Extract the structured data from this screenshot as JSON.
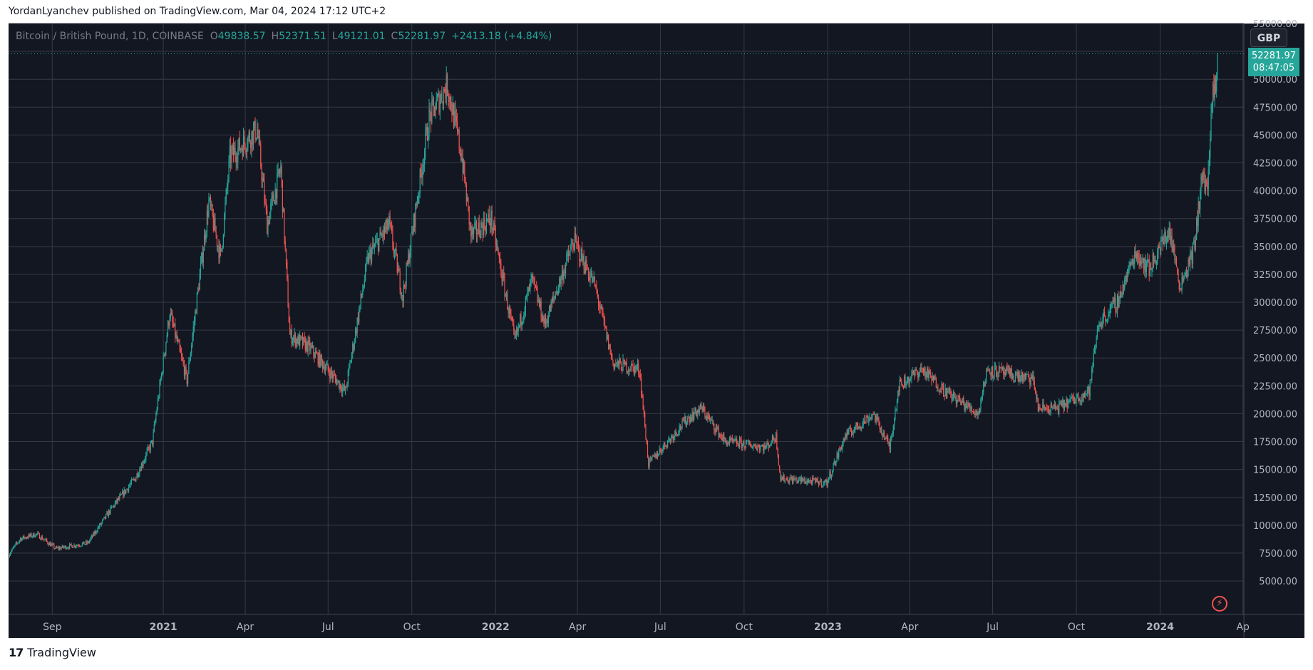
{
  "published_line": "YordanLyanchev published on TradingView.com, Mar 04, 2024 17:12 UTC+2",
  "legend": {
    "symbol": "Bitcoin / British Pound, 1D, COINBASE",
    "o_label": "O",
    "o_value": "49838.57",
    "h_label": "H",
    "h_value": "52371.51",
    "l_label": "L",
    "l_value": "49121.01",
    "c_label": "C",
    "c_value": "52281.97",
    "change": "+2413.18 (+4.84%)"
  },
  "currency_button": "GBP",
  "last_price": {
    "price": "52281.97",
    "countdown": "08:47:05"
  },
  "footer": {
    "brand": "TradingView",
    "logo_icon": "tradingview-logo-icon"
  },
  "colors": {
    "up": "#26a69a",
    "down": "#ef5350",
    "background": "#131722",
    "grid": "#363a45",
    "axis_text": "#b2b5be"
  },
  "chart_data": {
    "type": "candlestick",
    "interval": "1D",
    "y_ticks": [
      5000,
      7500,
      10000,
      12500,
      15000,
      17500,
      20000,
      22500,
      25000,
      27500,
      30000,
      32500,
      35000,
      37500,
      40000,
      42500,
      45000,
      47500,
      50000,
      52500,
      55000
    ],
    "y_tick_labels": [
      "5000.00",
      "7500.00",
      "10000.00",
      "12500.00",
      "15000.00",
      "17500.00",
      "20000.00",
      "22500.00",
      "25000.00",
      "27500.00",
      "30000.00",
      "32500.00",
      "35000.00",
      "37500.00",
      "40000.00",
      "42500.00",
      "45000.00",
      "47500.00",
      "50000.00",
      "52500.00",
      "55000.00"
    ],
    "ylim": [
      2000,
      55000
    ],
    "x_range": [
      "2020-07-15",
      "2024-04-02"
    ],
    "x_ticks": [
      {
        "date": "2020-09-01",
        "label": "Sep",
        "bold": false
      },
      {
        "date": "2021-01-01",
        "label": "2021",
        "bold": true
      },
      {
        "date": "2021-04-01",
        "label": "Apr",
        "bold": false
      },
      {
        "date": "2021-07-01",
        "label": "Jul",
        "bold": false
      },
      {
        "date": "2021-10-01",
        "label": "Oct",
        "bold": false
      },
      {
        "date": "2022-01-01",
        "label": "2022",
        "bold": true
      },
      {
        "date": "2022-04-01",
        "label": "Apr",
        "bold": false
      },
      {
        "date": "2022-07-01",
        "label": "Jul",
        "bold": false
      },
      {
        "date": "2022-10-01",
        "label": "Oct",
        "bold": false
      },
      {
        "date": "2023-01-01",
        "label": "2023",
        "bold": true
      },
      {
        "date": "2023-04-01",
        "label": "Apr",
        "bold": false
      },
      {
        "date": "2023-07-01",
        "label": "Jul",
        "bold": false
      },
      {
        "date": "2023-10-01",
        "label": "Oct",
        "bold": false
      },
      {
        "date": "2024-01-01",
        "label": "2024",
        "bold": true
      },
      {
        "date": "2024-04-01",
        "label": "Ap",
        "bold": false
      }
    ],
    "last_close": 52281.97,
    "price_path": [
      {
        "date": "2020-07-15",
        "close": 7350
      },
      {
        "date": "2020-07-28",
        "close": 8800
      },
      {
        "date": "2020-08-15",
        "close": 9200
      },
      {
        "date": "2020-09-05",
        "close": 7900
      },
      {
        "date": "2020-10-10",
        "close": 8400
      },
      {
        "date": "2020-11-05",
        "close": 11500
      },
      {
        "date": "2020-12-01",
        "close": 14200
      },
      {
        "date": "2020-12-20",
        "close": 17500
      },
      {
        "date": "2021-01-08",
        "close": 29000
      },
      {
        "date": "2021-01-27",
        "close": 23000
      },
      {
        "date": "2021-02-20",
        "close": 39000
      },
      {
        "date": "2021-03-05",
        "close": 34000
      },
      {
        "date": "2021-03-15",
        "close": 43000
      },
      {
        "date": "2021-04-14",
        "close": 45500
      },
      {
        "date": "2021-04-25",
        "close": 37000
      },
      {
        "date": "2021-05-10",
        "close": 42000
      },
      {
        "date": "2021-05-20",
        "close": 27000
      },
      {
        "date": "2021-06-10",
        "close": 26000
      },
      {
        "date": "2021-07-20",
        "close": 22000
      },
      {
        "date": "2021-08-14",
        "close": 34000
      },
      {
        "date": "2021-09-06",
        "close": 37000
      },
      {
        "date": "2021-09-21",
        "close": 30500
      },
      {
        "date": "2021-10-20",
        "close": 46500
      },
      {
        "date": "2021-11-09",
        "close": 49500
      },
      {
        "date": "2021-11-25",
        "close": 43000
      },
      {
        "date": "2021-12-05",
        "close": 36000
      },
      {
        "date": "2021-12-27",
        "close": 37500
      },
      {
        "date": "2022-01-22",
        "close": 26500
      },
      {
        "date": "2022-02-10",
        "close": 32000
      },
      {
        "date": "2022-02-24",
        "close": 28000
      },
      {
        "date": "2022-03-28",
        "close": 35500
      },
      {
        "date": "2022-04-20",
        "close": 31500
      },
      {
        "date": "2022-05-10",
        "close": 24500
      },
      {
        "date": "2022-06-08",
        "close": 24000
      },
      {
        "date": "2022-06-18",
        "close": 15500
      },
      {
        "date": "2022-07-30",
        "close": 19500
      },
      {
        "date": "2022-08-15",
        "close": 20500
      },
      {
        "date": "2022-09-10",
        "close": 17500
      },
      {
        "date": "2022-10-25",
        "close": 17000
      },
      {
        "date": "2022-11-05",
        "close": 18000
      },
      {
        "date": "2022-11-10",
        "close": 14200
      },
      {
        "date": "2022-12-31",
        "close": 13800
      },
      {
        "date": "2023-01-20",
        "close": 18000
      },
      {
        "date": "2023-02-20",
        "close": 20000
      },
      {
        "date": "2023-03-10",
        "close": 17000
      },
      {
        "date": "2023-03-20",
        "close": 22500
      },
      {
        "date": "2023-04-14",
        "close": 24000
      },
      {
        "date": "2023-05-10",
        "close": 22000
      },
      {
        "date": "2023-06-15",
        "close": 20000
      },
      {
        "date": "2023-06-25",
        "close": 24000
      },
      {
        "date": "2023-08-15",
        "close": 23000
      },
      {
        "date": "2023-08-20",
        "close": 20500
      },
      {
        "date": "2023-09-10",
        "close": 20500
      },
      {
        "date": "2023-10-15",
        "close": 22000
      },
      {
        "date": "2023-10-25",
        "close": 28000
      },
      {
        "date": "2023-11-15",
        "close": 30000
      },
      {
        "date": "2023-12-05",
        "close": 34500
      },
      {
        "date": "2023-12-20",
        "close": 33000
      },
      {
        "date": "2024-01-11",
        "close": 36500
      },
      {
        "date": "2024-01-23",
        "close": 31500
      },
      {
        "date": "2024-02-08",
        "close": 35000
      },
      {
        "date": "2024-02-15",
        "close": 41000
      },
      {
        "date": "2024-02-22",
        "close": 40500
      },
      {
        "date": "2024-02-28",
        "close": 48500
      },
      {
        "date": "2024-03-03",
        "close": 49800
      },
      {
        "date": "2024-03-04",
        "close": 52282
      }
    ]
  }
}
